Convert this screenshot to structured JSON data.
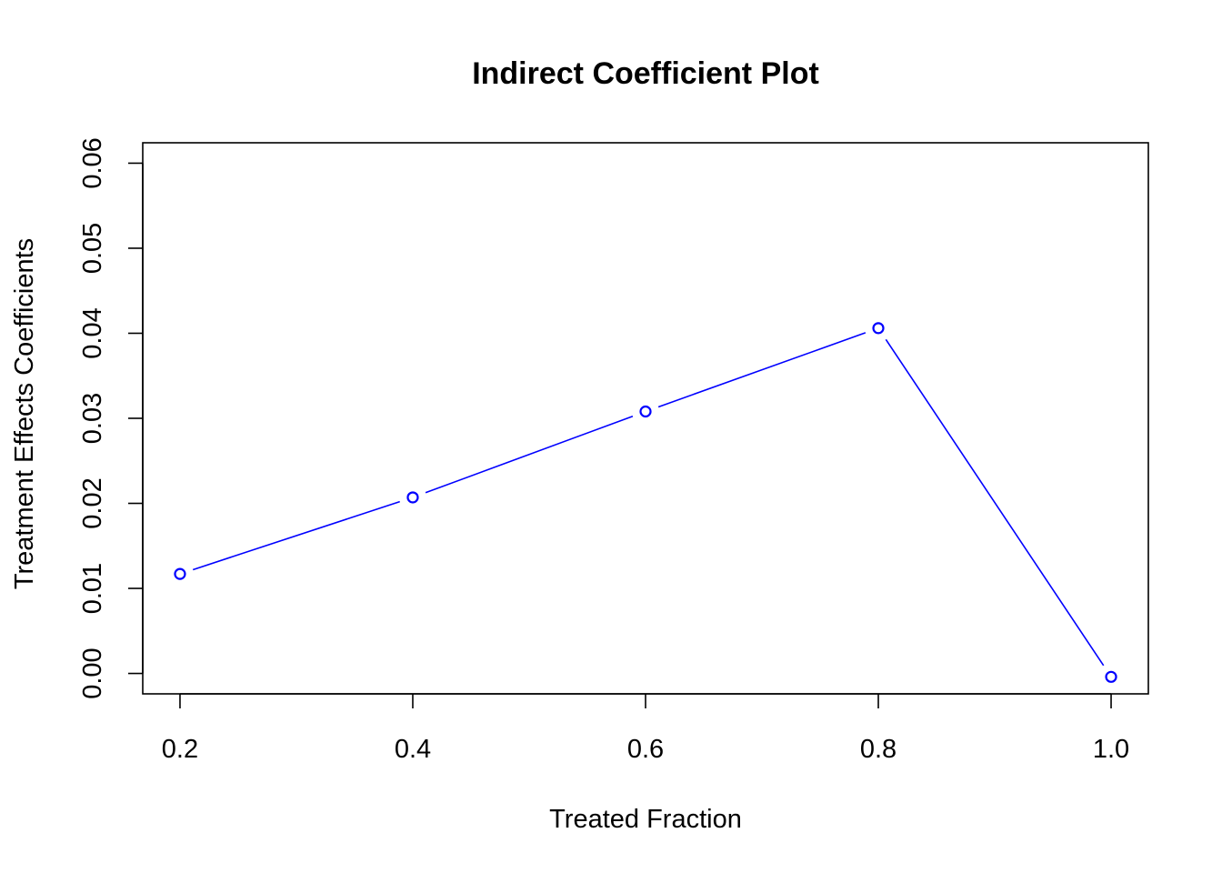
{
  "chart_data": {
    "type": "line",
    "title": "Indirect Coefficient Plot",
    "xlabel": "Treated Fraction",
    "ylabel": "Treatment Effects Coefficients",
    "x": [
      0.2,
      0.4,
      0.6,
      0.8,
      1.0
    ],
    "series": [
      {
        "values": [
          0.0117,
          0.0207,
          0.0308,
          0.0406,
          -0.0004
        ],
        "color": "#0000ff",
        "marker": "open-circle"
      }
    ],
    "x_ticks": [
      "0.2",
      "0.4",
      "0.6",
      "0.8",
      "1.0"
    ],
    "y_ticks": [
      "0.00",
      "0.01",
      "0.02",
      "0.03",
      "0.04",
      "0.05",
      "0.06"
    ],
    "xlim": [
      0.168,
      1.032
    ],
    "ylim": [
      -0.0024,
      0.0624
    ],
    "grid": false
  }
}
